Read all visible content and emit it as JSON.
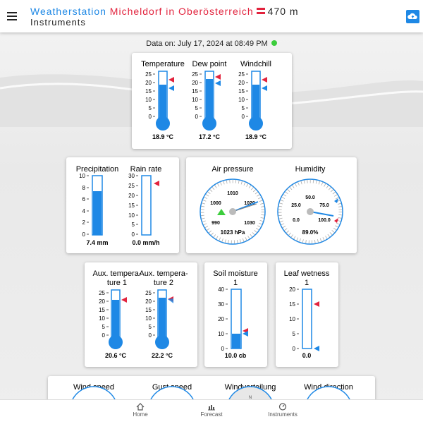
{
  "header": {
    "title_part1": "Weatherstation",
    "title_part2": "Micheldorf in Oberösterreich",
    "title_part3": "470 m",
    "subtitle": "Instruments"
  },
  "data_line": "Data on: July 17, 2024 at 08:49 PM",
  "cards": {
    "temps": {
      "temperature": {
        "label": "Temperature",
        "value": "18.9 °C"
      },
      "dew_point": {
        "label": "Dew point",
        "value": "17.2 °C"
      },
      "windchill": {
        "label": "Windchill",
        "value": "18.9 °C"
      },
      "ticks": [
        "25",
        "20",
        "15",
        "10",
        "5",
        "0"
      ]
    },
    "rain": {
      "precipitation": {
        "label": "Precipitation",
        "value": "7.4 mm",
        "ticks": [
          "10",
          "8",
          "6",
          "4",
          "2",
          "0"
        ]
      },
      "rain_rate": {
        "label": "Rain rate",
        "value": "0.0 mm/h",
        "ticks": [
          "30",
          "25",
          "20",
          "15",
          "10",
          "5",
          "0"
        ]
      }
    },
    "pressure": {
      "label": "Air pressure",
      "value": "1023 hPa",
      "ticks": [
        "990",
        "1000",
        "1010",
        "1020",
        "1030"
      ]
    },
    "humidity": {
      "label": "Humidity",
      "value": "89.0%",
      "ticks": [
        "0.0",
        "25.0",
        "50.0",
        "75.0",
        "100.0"
      ]
    },
    "aux": {
      "aux1": {
        "label1": "Aux. tempera-",
        "label2": "ture 1",
        "value": "20.6 °C"
      },
      "aux2": {
        "label1": "Aux. tempera-",
        "label2": "ture 2",
        "value": "22.2 °C"
      },
      "ticks": [
        "25",
        "20",
        "15",
        "10",
        "5",
        "0"
      ]
    },
    "soil": {
      "label1": "Soil moisture",
      "label2": "1",
      "value": "10.0 cb",
      "ticks": [
        "40",
        "30",
        "20",
        "10",
        "0"
      ]
    },
    "leaf": {
      "label1": "Leaf wetness",
      "label2": "1",
      "value": "0.0",
      "ticks": [
        "20",
        "15",
        "10",
        "5",
        "0"
      ]
    },
    "bottom": {
      "wind_speed": "Wind speed",
      "gust_speed": "Gust speed",
      "wind_distribution": "Windverteilung",
      "wind_direction": "Wind direction",
      "compass_n": "N"
    }
  },
  "tabs": {
    "home": "Home",
    "forecast": "Forecast",
    "instruments": "Instruments"
  },
  "colors": {
    "accent": "#1e88e5",
    "red": "#e2233d",
    "status_ok": "#3ccd3c"
  }
}
